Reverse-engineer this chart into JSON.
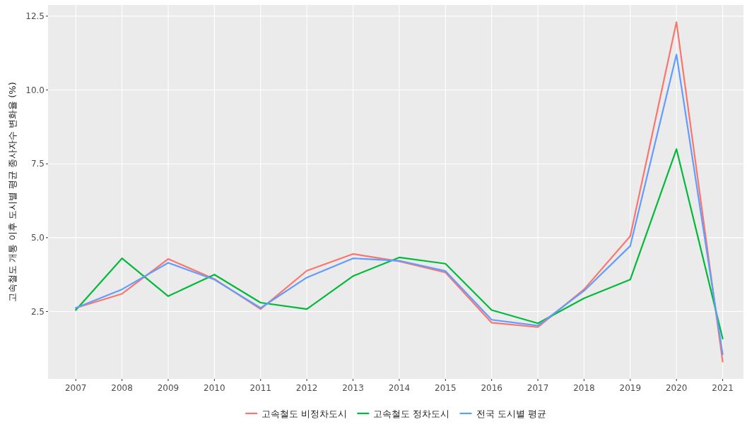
{
  "chart_data": {
    "type": "line",
    "ylabel": "고속철도 개통 이후 도시별 평균 종사자수 변화율 (%)",
    "x": [
      2007,
      2008,
      2009,
      2010,
      2011,
      2012,
      2013,
      2014,
      2015,
      2016,
      2017,
      2018,
      2019,
      2020,
      2021
    ],
    "series": [
      {
        "name": "고속철도 비정차도시",
        "color": "#f8766d",
        "values": [
          2.62,
          3.1,
          4.28,
          3.6,
          2.58,
          3.88,
          4.45,
          4.2,
          3.82,
          2.12,
          1.97,
          3.25,
          5.05,
          12.3,
          0.8
        ]
      },
      {
        "name": "고속철도 정차도시",
        "color": "#00ba38",
        "values": [
          2.55,
          4.3,
          3.02,
          3.75,
          2.8,
          2.58,
          3.7,
          4.33,
          4.12,
          2.55,
          2.1,
          2.95,
          3.58,
          8.0,
          1.58
        ]
      },
      {
        "name": "전국 도시별 평균",
        "color": "#619cff",
        "values": [
          2.62,
          3.25,
          4.15,
          3.58,
          2.62,
          3.65,
          4.3,
          4.22,
          3.87,
          2.22,
          2.02,
          3.2,
          4.72,
          11.2,
          1.05
        ]
      }
    ],
    "xlim": [
      2006.4,
      2021.45
    ],
    "xticks": [
      2007,
      2008,
      2009,
      2010,
      2011,
      2012,
      2013,
      2014,
      2015,
      2016,
      2017,
      2018,
      2019,
      2020,
      2021
    ],
    "ylim": [
      0.22,
      12.88
    ],
    "yticks": [
      {
        "value": 2.5,
        "label": "2.5"
      },
      {
        "value": 5,
        "label": "5.0"
      },
      {
        "value": 7.5,
        "label": "7.5"
      },
      {
        "value": 10,
        "label": "10.0"
      },
      {
        "value": 12.5,
        "label": "12.5"
      }
    ],
    "grid": true,
    "legend": "bottom",
    "marker": "none",
    "line_style": "solid"
  }
}
